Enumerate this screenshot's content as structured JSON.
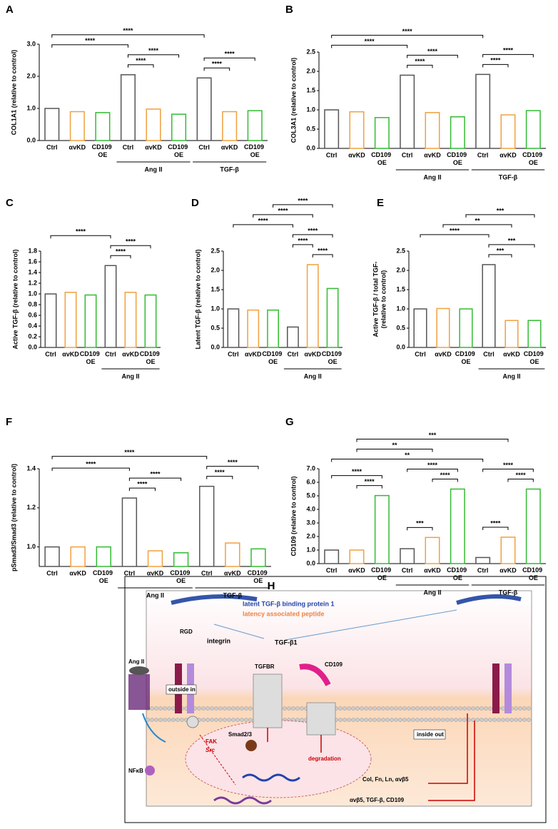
{
  "chart_data": [
    {
      "type": "bar",
      "panel": "A",
      "ylabel": [
        "COL1A1 (relative to control)"
      ],
      "categories": [
        "Ctrl",
        "αvKD",
        "CD109 OE",
        "Ctrl",
        "αvKD",
        "CD109 OE",
        "Ctrl",
        "αvKD",
        "CD109 OE"
      ],
      "values": [
        1.0,
        0.9,
        0.87,
        2.05,
        0.98,
        0.82,
        1.95,
        0.9,
        0.93
      ],
      "colors": [
        "#555555",
        "#f0a040",
        "#33bb33"
      ],
      "ylim": [
        0,
        3
      ],
      "yticks": [
        {
          "value": 0,
          "label": "0.0"
        },
        {
          "value": 1,
          "label": "1.0"
        },
        {
          "value": 2,
          "label": "2.0"
        },
        {
          "value": 3,
          "label": "3.0"
        }
      ],
      "groups": [
        {
          "label": "Ang II",
          "from": 3,
          "to": 5
        },
        {
          "label": "TGF-β",
          "from": 6,
          "to": 8
        }
      ],
      "brackets": [
        {
          "from": 3,
          "to": 4,
          "label": "****"
        },
        {
          "from": 3,
          "to": 5,
          "label": "****"
        },
        {
          "from": 6,
          "to": 7,
          "label": "****"
        },
        {
          "from": 6,
          "to": 8,
          "label": "****"
        },
        {
          "from": 0,
          "to": 3,
          "label": "****"
        },
        {
          "from": 0,
          "to": 6,
          "label": "****"
        }
      ]
    },
    {
      "type": "bar",
      "panel": "B",
      "ylabel": [
        "COL3A1 (relative to control)"
      ],
      "categories": [
        "Ctrl",
        "αvKD",
        "CD109 OE",
        "Ctrl",
        "αvKD",
        "CD109 OE",
        "Ctrl",
        "αvKD",
        "CD109 OE"
      ],
      "values": [
        1.0,
        0.95,
        0.8,
        1.9,
        0.93,
        0.82,
        1.92,
        0.87,
        0.98
      ],
      "colors": [
        "#555555",
        "#f0a040",
        "#33bb33"
      ],
      "ylim": [
        0,
        2.5
      ],
      "yticks": [
        {
          "value": 0,
          "label": "0.0"
        },
        0.5,
        {
          "value": 1,
          "label": "1.0"
        },
        1.5,
        {
          "value": 2,
          "label": "2.0"
        },
        2.5
      ],
      "groups": [
        {
          "label": "Ang II",
          "from": 3,
          "to": 5
        },
        {
          "label": "TGF-β",
          "from": 6,
          "to": 8
        }
      ],
      "brackets": [
        {
          "from": 3,
          "to": 4,
          "label": "****"
        },
        {
          "from": 3,
          "to": 5,
          "label": "****"
        },
        {
          "from": 6,
          "to": 7,
          "label": "****"
        },
        {
          "from": 6,
          "to": 8,
          "label": "****"
        },
        {
          "from": 0,
          "to": 3,
          "label": "****"
        },
        {
          "from": 0,
          "to": 6,
          "label": "****"
        }
      ]
    },
    {
      "type": "bar",
      "panel": "C",
      "ylabel": [
        "Active TGF-β (relative to control)"
      ],
      "categories": [
        "Ctrl",
        "αvKD",
        "CD109 OE",
        "Ctrl",
        "αvKD",
        "CD109 OE"
      ],
      "values": [
        1.0,
        1.03,
        0.98,
        1.53,
        1.03,
        0.98
      ],
      "colors": [
        "#555555",
        "#f0a040",
        "#33bb33"
      ],
      "ylim": [
        0,
        1.8
      ],
      "yticks": [
        {
          "value": 0,
          "label": "0.0"
        },
        0.2,
        0.4,
        0.6,
        0.8,
        {
          "value": 1,
          "label": "1.0"
        },
        1.2,
        1.4,
        1.6,
        1.8
      ],
      "groups": [
        {
          "label": "Ang II",
          "from": 3,
          "to": 5
        }
      ],
      "brackets": [
        {
          "from": 3,
          "to": 4,
          "label": "****"
        },
        {
          "from": 3,
          "to": 5,
          "label": "****"
        },
        {
          "from": 0,
          "to": 3,
          "label": "****"
        }
      ]
    },
    {
      "type": "bar",
      "panel": "D",
      "ylabel": [
        "Latent TGF-β (relative to control)"
      ],
      "categories": [
        "Ctrl",
        "αvKD",
        "CD109 OE",
        "Ctrl",
        "αvKD",
        "CD109 OE"
      ],
      "values": [
        1.0,
        0.97,
        0.97,
        0.53,
        2.15,
        1.53
      ],
      "colors": [
        "#555555",
        "#f0a040",
        "#33bb33"
      ],
      "ylim": [
        0,
        2.5
      ],
      "yticks": [
        {
          "value": 0,
          "label": "0.0"
        },
        0.5,
        {
          "value": 1,
          "label": "1.0"
        },
        1.5,
        {
          "value": 2,
          "label": "2.0"
        },
        2.5
      ],
      "groups": [
        {
          "label": "Ang II",
          "from": 3,
          "to": 5
        }
      ],
      "brackets": [
        {
          "from": 4,
          "to": 5,
          "label": "****"
        },
        {
          "from": 3,
          "to": 4,
          "label": "****"
        },
        {
          "from": 3,
          "to": 5,
          "label": "****"
        },
        {
          "from": 0,
          "to": 3,
          "label": "****"
        },
        {
          "from": 1,
          "to": 4,
          "label": "****"
        },
        {
          "from": 2,
          "to": 5,
          "label": "****"
        }
      ]
    },
    {
      "type": "bar",
      "panel": "E",
      "ylabel": [
        "Active TGF-β / total TGF-",
        "(relative to control)"
      ],
      "categories": [
        "Ctrl",
        "αvKD",
        "CD109 OE",
        "Ctrl",
        "αvKD",
        "CD109 OE"
      ],
      "values": [
        1.0,
        1.01,
        1.0,
        2.15,
        0.7,
        0.7
      ],
      "colors": [
        "#555555",
        "#f0a040",
        "#33bb33"
      ],
      "ylim": [
        0,
        2.5
      ],
      "yticks": [
        {
          "value": 0,
          "label": "0.0"
        },
        0.5,
        {
          "value": 1,
          "label": "1.0"
        },
        1.5,
        {
          "value": 2,
          "label": "2.0"
        },
        2.5
      ],
      "groups": [
        {
          "label": "Ang II",
          "from": 3,
          "to": 5
        }
      ],
      "brackets": [
        {
          "from": 3,
          "to": 4,
          "label": "***"
        },
        {
          "from": 3,
          "to": 5,
          "label": "***"
        },
        {
          "from": 0,
          "to": 3,
          "label": "****"
        },
        {
          "from": 1,
          "to": 4,
          "label": "**"
        },
        {
          "from": 2,
          "to": 5,
          "label": "***"
        }
      ]
    },
    {
      "type": "bar",
      "panel": "F",
      "ylabel": [
        "pSmad3/Smad3 (relative to control)"
      ],
      "categories": [
        "Ctrl",
        "αvKD",
        "CD109 OE",
        "Ctrl",
        "αvKD",
        "CD109 OE",
        "Ctrl",
        "αvKD",
        "CD109 OE"
      ],
      "values": [
        1.0,
        1.0,
        1.0,
        1.25,
        0.98,
        0.97,
        1.31,
        1.02,
        0.99
      ],
      "colors": [
        "#555555",
        "#f0a040",
        "#33bb33"
      ],
      "ylim": [
        0.9,
        1.4
      ],
      "yticks": [
        {
          "value": 1,
          "label": "1.0"
        },
        1.2,
        1.4
      ],
      "groups": [
        {
          "label": "Ang II",
          "from": 3,
          "to": 5
        },
        {
          "label": "TGF-β",
          "from": 6,
          "to": 8
        }
      ],
      "brackets": [
        {
          "from": 3,
          "to": 4,
          "label": "****"
        },
        {
          "from": 3,
          "to": 5,
          "label": "****"
        },
        {
          "from": 6,
          "to": 7,
          "label": "****"
        },
        {
          "from": 6,
          "to": 8,
          "label": "****"
        },
        {
          "from": 0,
          "to": 3,
          "label": "****"
        },
        {
          "from": 0,
          "to": 6,
          "label": "****"
        }
      ]
    },
    {
      "type": "bar",
      "panel": "G",
      "ylabel": [
        "CD109 (relative to control)"
      ],
      "categories": [
        "Ctrl",
        "αvKD",
        "CD109 OE",
        "Ctrl",
        "αvKD",
        "CD109 OE",
        "Ctrl",
        "αvKD",
        "CD109 OE"
      ],
      "values": [
        1.0,
        1.0,
        5.02,
        1.1,
        1.93,
        5.5,
        0.45,
        1.95,
        5.5
      ],
      "colors": [
        "#555555",
        "#f0a040",
        "#33bb33"
      ],
      "ylim": [
        0,
        7
      ],
      "yticks": [
        {
          "value": 0,
          "label": "0.0"
        },
        {
          "value": 1,
          "label": "1.0"
        },
        {
          "value": 2,
          "label": "2.0"
        },
        {
          "value": 3,
          "label": "3.0"
        },
        {
          "value": 4,
          "label": "4.0"
        },
        {
          "value": 5,
          "label": "5.0"
        },
        {
          "value": 6,
          "label": "6.0"
        },
        {
          "value": 7,
          "label": "7.0"
        }
      ],
      "groups": [
        {
          "label": "Ang II",
          "from": 3,
          "to": 5
        },
        {
          "label": "TGF-β",
          "from": 6,
          "to": 8
        }
      ],
      "brackets": [
        {
          "from": 1,
          "to": 2,
          "label": "****"
        },
        {
          "from": 0,
          "to": 2,
          "label": "****"
        },
        {
          "from": 3,
          "to": 4,
          "label": "***"
        },
        {
          "from": 4,
          "to": 5,
          "label": "****"
        },
        {
          "from": 3,
          "to": 5,
          "label": "****"
        },
        {
          "from": 6,
          "to": 7,
          "label": "****"
        },
        {
          "from": 7,
          "to": 8,
          "label": "****"
        },
        {
          "from": 6,
          "to": 8,
          "label": "****"
        },
        {
          "from": 0,
          "to": 6,
          "label": "**"
        },
        {
          "from": 1,
          "to": 4,
          "label": "**"
        },
        {
          "from": 1,
          "to": 7,
          "label": "***"
        }
      ]
    }
  ],
  "diagram": {
    "panel": "H",
    "labels": [
      "latent TGF-β binding protein 1",
      "latency associated peptide",
      "RGD",
      "integrin",
      "TGF-β1",
      "TGFBR",
      "CD109",
      "Ang II",
      "outside in",
      "inside out",
      "FAK",
      "Src",
      "Smad2/3",
      "NFκB",
      "degradation",
      "Col, Fn, Ln, αvβ5",
      "αvβ5, TGF-β, CD109"
    ]
  }
}
